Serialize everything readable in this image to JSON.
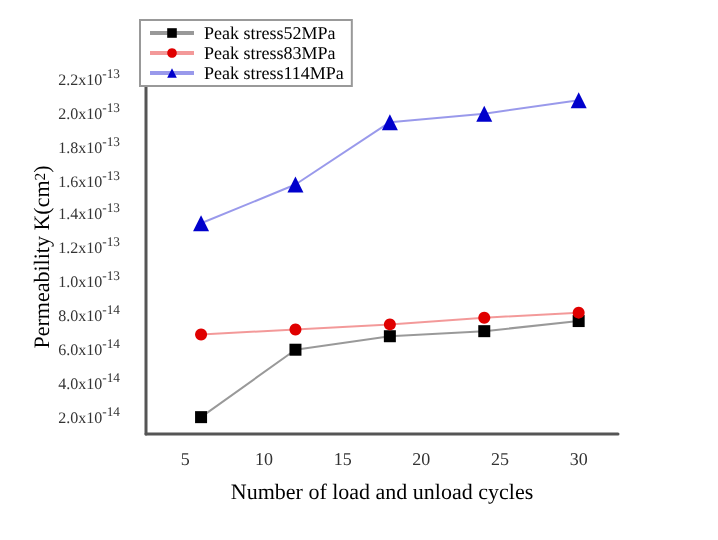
{
  "chart_data": {
    "type": "line",
    "xlabel": "Number of load and unload cycles",
    "ylabel": "Permeability K(cm$^{2}$)",
    "x": [
      6,
      12,
      18,
      24,
      30
    ],
    "series": [
      {
        "name": "Peak stress52MPa",
        "color": "#000000",
        "marker": "square",
        "values": [
          2e-14,
          6e-14,
          6.8e-14,
          7.1e-14,
          7.7e-14
        ]
      },
      {
        "name": "Peak stress83MPa",
        "color": "#e00000",
        "marker": "circle",
        "values": [
          6.9e-14,
          7.2e-14,
          7.5e-14,
          7.9e-14,
          8.2e-14
        ]
      },
      {
        "name": "Peak stress114MPa",
        "color": "#0000cc",
        "marker": "triangle",
        "values": [
          1.35e-13,
          1.58e-13,
          1.95e-13,
          2e-13,
          2.08e-13
        ]
      }
    ],
    "xlim": [
      2.5,
      32.5
    ],
    "xticks": [
      5,
      10,
      15,
      20,
      25,
      30
    ],
    "ylim": [
      1e-14,
      2.2e-13
    ],
    "yticks": [
      {
        "value": 2e-14,
        "label": "2.0x10$^{-14}$"
      },
      {
        "value": 4e-14,
        "label": "4.0x10$^{-14}$"
      },
      {
        "value": 6e-14,
        "label": "6.0x10$^{-14}$"
      },
      {
        "value": 8e-14,
        "label": "8.0x10$^{-14}$"
      },
      {
        "value": 1e-13,
        "label": "1.0x10$^{-13}$"
      },
      {
        "value": 1.2e-13,
        "label": "1.2x10$^{-13}$"
      },
      {
        "value": 1.4e-13,
        "label": "1.4x10$^{-13}$"
      },
      {
        "value": 1.6e-13,
        "label": "1.6x10$^{-13}$"
      },
      {
        "value": 1.8e-13,
        "label": "1.8x10$^{-13}$"
      },
      {
        "value": 2e-13,
        "label": "2.0x10$^{-13}$"
      },
      {
        "value": 2.2e-13,
        "label": "2.2x10$^{-13}$"
      }
    ],
    "grid": false,
    "legend": "top left",
    "line_style": "solid"
  }
}
